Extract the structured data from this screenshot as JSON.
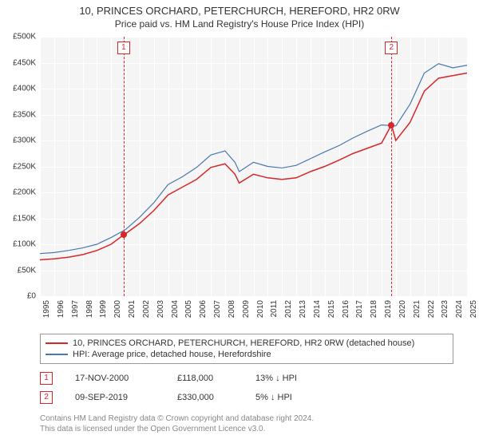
{
  "title": "10, PRINCES ORCHARD, PETERCHURCH, HEREFORD, HR2 0RW",
  "subtitle": "Price paid vs. HM Land Registry's House Price Index (HPI)",
  "chart": {
    "type": "line",
    "background_color": "#ffffff",
    "plot_background_color": "#f5f5f5",
    "grid_color": "#dddddd",
    "grid_major_color": "#ffffff",
    "axis_color": "#333333",
    "ylim": [
      0,
      500000
    ],
    "ytick_step": 50000,
    "ylabels": [
      "£0",
      "£50K",
      "£100K",
      "£150K",
      "£200K",
      "£250K",
      "£300K",
      "£350K",
      "£400K",
      "£450K",
      "£500K"
    ],
    "xrange": [
      1995,
      2025
    ],
    "xlabels": [
      "1995",
      "1996",
      "1997",
      "1998",
      "1999",
      "2000",
      "2001",
      "2002",
      "2003",
      "2004",
      "2005",
      "2006",
      "2007",
      "2008",
      "2009",
      "2010",
      "2011",
      "2012",
      "2013",
      "2014",
      "2015",
      "2016",
      "2017",
      "2018",
      "2019",
      "2020",
      "2021",
      "2022",
      "2023",
      "2024",
      "2025"
    ],
    "series": [
      {
        "name": "10, PRINCES ORCHARD, PETERCHURCH, HEREFORD, HR2 0RW (detached house)",
        "color": "#d62728",
        "line_width": 1.5,
        "data": [
          [
            1995,
            70000
          ],
          [
            1996,
            72000
          ],
          [
            1997,
            75000
          ],
          [
            1998,
            80000
          ],
          [
            1999,
            88000
          ],
          [
            2000,
            100000
          ],
          [
            2000.88,
            118000
          ],
          [
            2001,
            120000
          ],
          [
            2002,
            140000
          ],
          [
            2003,
            165000
          ],
          [
            2004,
            195000
          ],
          [
            2005,
            210000
          ],
          [
            2006,
            225000
          ],
          [
            2007,
            248000
          ],
          [
            2008,
            255000
          ],
          [
            2008.7,
            235000
          ],
          [
            2009,
            218000
          ],
          [
            2010,
            235000
          ],
          [
            2011,
            228000
          ],
          [
            2012,
            225000
          ],
          [
            2013,
            228000
          ],
          [
            2014,
            240000
          ],
          [
            2015,
            250000
          ],
          [
            2016,
            262000
          ],
          [
            2017,
            275000
          ],
          [
            2018,
            285000
          ],
          [
            2019,
            295000
          ],
          [
            2019.69,
            330000
          ],
          [
            2020,
            300000
          ],
          [
            2021,
            335000
          ],
          [
            2022,
            395000
          ],
          [
            2023,
            420000
          ],
          [
            2024,
            425000
          ],
          [
            2025,
            430000
          ]
        ]
      },
      {
        "name": "HPI: Average price, detached house, Herefordshire",
        "color": "#4878b0",
        "line_width": 1.2,
        "data": [
          [
            1995,
            82000
          ],
          [
            1996,
            84000
          ],
          [
            1997,
            88000
          ],
          [
            1998,
            93000
          ],
          [
            1999,
            100000
          ],
          [
            2000,
            113000
          ],
          [
            2001,
            128000
          ],
          [
            2002,
            152000
          ],
          [
            2003,
            180000
          ],
          [
            2004,
            215000
          ],
          [
            2005,
            230000
          ],
          [
            2006,
            248000
          ],
          [
            2007,
            272000
          ],
          [
            2008,
            280000
          ],
          [
            2008.7,
            258000
          ],
          [
            2009,
            240000
          ],
          [
            2010,
            258000
          ],
          [
            2011,
            250000
          ],
          [
            2012,
            247000
          ],
          [
            2013,
            252000
          ],
          [
            2014,
            265000
          ],
          [
            2015,
            278000
          ],
          [
            2016,
            290000
          ],
          [
            2017,
            305000
          ],
          [
            2018,
            318000
          ],
          [
            2019,
            330000
          ],
          [
            2020,
            328000
          ],
          [
            2021,
            370000
          ],
          [
            2022,
            430000
          ],
          [
            2023,
            448000
          ],
          [
            2024,
            440000
          ],
          [
            2025,
            445000
          ]
        ]
      }
    ],
    "events": [
      {
        "n": "1",
        "x": 2000.88,
        "color": "#d62728"
      },
      {
        "n": "2",
        "x": 2019.69,
        "color": "#d62728"
      }
    ],
    "markers": [
      {
        "x": 2000.88,
        "y": 118000,
        "color": "#d62728"
      },
      {
        "x": 2019.69,
        "y": 330000,
        "color": "#d62728"
      }
    ]
  },
  "legend": {
    "items": [
      {
        "color": "#d62728",
        "label": "10, PRINCES ORCHARD, PETERCHURCH, HEREFORD, HR2 0RW (detached house)"
      },
      {
        "color": "#4878b0",
        "label": "HPI: Average price, detached house, Herefordshire"
      }
    ]
  },
  "transactions": [
    {
      "n": "1",
      "color": "#d62728",
      "date": "17-NOV-2000",
      "price": "£118,000",
      "diff": "13% ↓ HPI"
    },
    {
      "n": "2",
      "color": "#d62728",
      "date": "09-SEP-2019",
      "price": "£330,000",
      "diff": "5% ↓ HPI"
    }
  ],
  "footer": {
    "line1": "Contains HM Land Registry data © Crown copyright and database right 2024.",
    "line2": "This data is licensed under the Open Government Licence v3.0."
  }
}
